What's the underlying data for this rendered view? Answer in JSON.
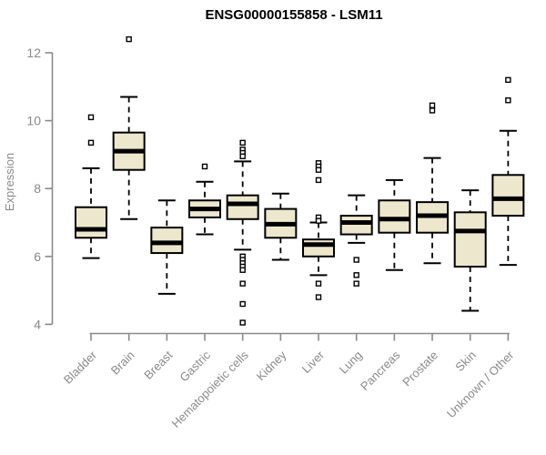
{
  "figure": {
    "background": "#ffffff"
  },
  "chart_data": {
    "type": "box",
    "title": "ENSG00000155858 - LSM11",
    "ylabel": "Expression",
    "xlabel": "",
    "ylim": [
      3.7,
      12.6
    ],
    "yticks": [
      4,
      6,
      8,
      10,
      12
    ],
    "grid": false,
    "legend": "none",
    "colors": {
      "box_fill": "#EDE7CD",
      "box_border": "#000000",
      "median": "#000000",
      "whisker": "#000000",
      "outlier_stroke": "#000000",
      "outlier_fill": "#ffffff",
      "axis": "#8A8A8A",
      "tick_label": "#8A8A8A",
      "title": "#000000"
    },
    "categories": [
      "Bladder",
      "Brain",
      "Breast",
      "Gastric",
      "Hematopoietic cells",
      "Kidney",
      "Liver",
      "Lung",
      "Pancreas",
      "Prostate",
      "Skin",
      "Unknown / Other"
    ],
    "boxes": [
      {
        "label": "Bladder",
        "low": 5.95,
        "q1": 6.55,
        "median": 6.8,
        "q3": 7.45,
        "high": 8.6,
        "outliers": [
          9.35,
          10.1
        ]
      },
      {
        "label": "Brain",
        "low": 7.1,
        "q1": 8.55,
        "median": 9.1,
        "q3": 9.65,
        "high": 10.7,
        "outliers": [
          12.4
        ]
      },
      {
        "label": "Breast",
        "low": 4.9,
        "q1": 6.1,
        "median": 6.4,
        "q3": 6.85,
        "high": 7.65,
        "outliers": []
      },
      {
        "label": "Gastric",
        "low": 6.65,
        "q1": 7.15,
        "median": 7.4,
        "q3": 7.65,
        "high": 8.2,
        "outliers": [
          8.65
        ]
      },
      {
        "label": "Hematopoietic cells",
        "low": 6.2,
        "q1": 7.1,
        "median": 7.55,
        "q3": 7.8,
        "high": 8.8,
        "outliers": [
          9.35,
          9.15,
          9.05,
          8.95,
          6.0,
          5.9,
          5.8,
          5.7,
          5.6,
          5.2,
          4.6,
          4.05
        ]
      },
      {
        "label": "Kidney",
        "low": 5.9,
        "q1": 6.55,
        "median": 6.95,
        "q3": 7.4,
        "high": 7.85,
        "outliers": []
      },
      {
        "label": "Liver",
        "low": 5.45,
        "q1": 6.0,
        "median": 6.35,
        "q3": 6.5,
        "high": 7.0,
        "outliers": [
          8.75,
          8.65,
          8.55,
          8.25,
          7.15,
          7.05,
          5.2,
          4.8
        ]
      },
      {
        "label": "Lung",
        "low": 6.4,
        "q1": 6.65,
        "median": 7.0,
        "q3": 7.2,
        "high": 7.8,
        "outliers": [
          5.9,
          5.45,
          5.2
        ]
      },
      {
        "label": "Pancreas",
        "low": 5.6,
        "q1": 6.7,
        "median": 7.1,
        "q3": 7.65,
        "high": 8.25,
        "outliers": []
      },
      {
        "label": "Prostate",
        "low": 5.8,
        "q1": 6.7,
        "median": 7.2,
        "q3": 7.6,
        "high": 8.9,
        "outliers": [
          10.45,
          10.3
        ]
      },
      {
        "label": "Skin",
        "low": 4.4,
        "q1": 5.7,
        "median": 6.75,
        "q3": 7.3,
        "high": 7.95,
        "outliers": []
      },
      {
        "label": "Unknown / Other",
        "low": 5.75,
        "q1": 7.2,
        "median": 7.7,
        "q3": 8.4,
        "high": 9.7,
        "outliers": [
          11.2,
          10.6
        ]
      }
    ]
  }
}
